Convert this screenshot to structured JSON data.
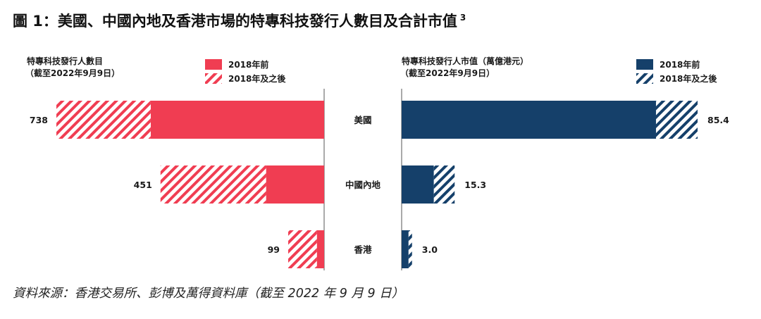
{
  "title": "圖 1：美國、中國內地及香港市場的特專科技發行人數目及合計市值",
  "title_note": "3",
  "source": "資料來源：香港交易所、彭博及萬得資料庫（截至 2022 年 9 月 9 日）",
  "colors": {
    "left_solid": "#f03d52",
    "right_solid": "#15406a",
    "axis": "#555555",
    "text": "#1a1a1a"
  },
  "chart_data": [
    {
      "type": "bar",
      "orientation": "horizontal-stacked",
      "title": "特專科技發行人數目",
      "subtitle": "（截至2022年9月9日）",
      "categories": [
        "美國",
        "中國內地",
        "香港"
      ],
      "series": [
        {
          "name": "2018年前",
          "values": [
            478,
            160,
            20
          ],
          "pattern": "solid"
        },
        {
          "name": "2018年及之後",
          "values": [
            260,
            291,
            79
          ],
          "pattern": "hatched"
        }
      ],
      "totals": [
        "738",
        "451",
        "99"
      ],
      "xlim": [
        0,
        738
      ],
      "legend": "top",
      "grid": false
    },
    {
      "type": "bar",
      "orientation": "horizontal-stacked",
      "title": "特專科技發行人市值（萬億港元）",
      "subtitle": "（截至2022年9月9日）",
      "categories": [
        "美國",
        "中國內地",
        "香港"
      ],
      "series": [
        {
          "name": "2018年前",
          "values": [
            73.4,
            9.3,
            2.0
          ],
          "pattern": "solid"
        },
        {
          "name": "2018年及之後",
          "values": [
            12.0,
            6.0,
            1.0
          ],
          "pattern": "hatched"
        }
      ],
      "totals": [
        "85.4",
        "15.3",
        "3.0"
      ],
      "xlim": [
        0,
        85.4
      ],
      "legend": "top-right",
      "grid": false
    }
  ]
}
